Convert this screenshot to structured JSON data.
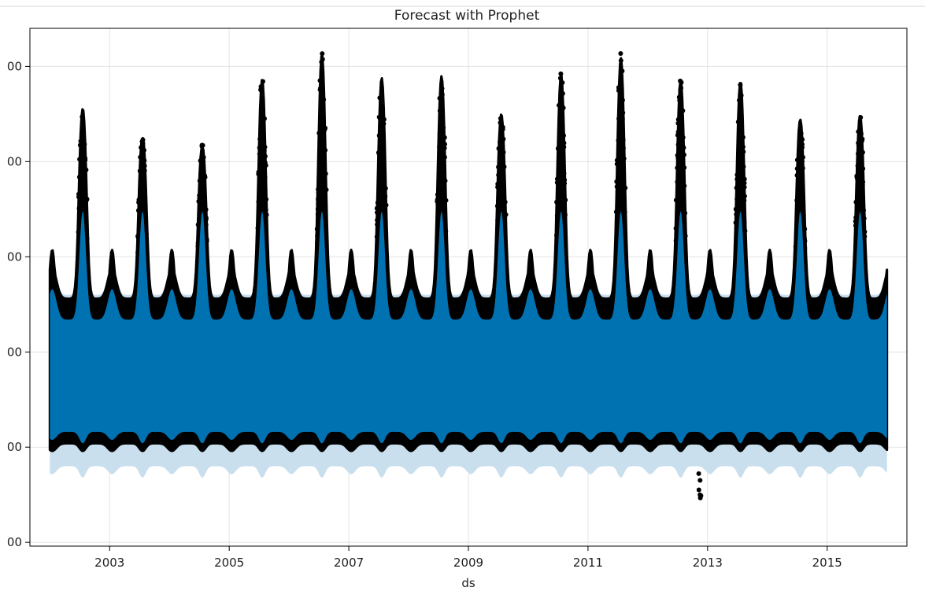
{
  "chart_data": {
    "type": "scatter",
    "title": "Forecast with Prophet",
    "xlabel": "ds",
    "ylabel": "",
    "x_ticks": [
      "2003",
      "2005",
      "2007",
      "2009",
      "2011",
      "2013",
      "2015"
    ],
    "y_ticks": [
      {
        "value": 2500,
        "label": "00"
      },
      {
        "value": 2000,
        "label": "00"
      },
      {
        "value": 1500,
        "label": "00"
      },
      {
        "value": 1000,
        "label": "00"
      },
      {
        "value": 500,
        "label": "00"
      },
      {
        "value": 0,
        "label": "00"
      }
    ],
    "xlim": [
      "2001-09",
      "2016-05"
    ],
    "ylim": [
      -20,
      2700
    ],
    "x_range": [
      "2002-01-01",
      "2016-01-01"
    ],
    "grid": true,
    "colors": {
      "observed": "#000000",
      "forecast": "#0072b2",
      "uncertainty": "#c9dfee",
      "grid": "#e3e3e3"
    },
    "series": [
      {
        "kind": "observed-points",
        "annual_peaks": [
          {
            "year": 2002,
            "peak": 2300
          },
          {
            "year": 2003,
            "peak": 2140
          },
          {
            "year": 2004,
            "peak": 2090
          },
          {
            "year": 2005,
            "peak": 2460
          },
          {
            "year": 2006,
            "peak": 2600
          },
          {
            "year": 2007,
            "peak": 2470
          },
          {
            "year": 2008,
            "peak": 2480
          },
          {
            "year": 2009,
            "peak": 2270
          },
          {
            "year": 2010,
            "peak": 2490
          },
          {
            "year": 2011,
            "peak": 2580
          },
          {
            "year": 2012,
            "peak": 2460
          },
          {
            "year": 2013,
            "peak": 2450
          },
          {
            "year": 2014,
            "peak": 2240
          },
          {
            "year": 2015,
            "peak": 2260
          }
        ],
        "winter_level": 1670,
        "daily_low": 520,
        "min_value": 220
      },
      {
        "kind": "forecast-yhat",
        "baseline": 1020,
        "annual_peak": 1740,
        "winter_level": 1370,
        "daily_low": 440
      },
      {
        "kind": "uncertainty-interval",
        "upper_extra": 130,
        "lower_extra": 180
      }
    ]
  }
}
